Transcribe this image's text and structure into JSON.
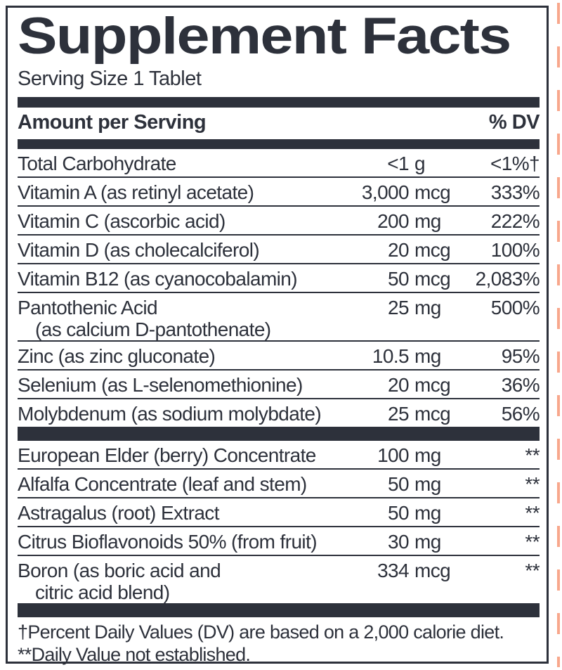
{
  "colors": {
    "ink": "#2d313b",
    "crop_mark_pink": "#f8a78c",
    "background": "#ffffff"
  },
  "label": {
    "title": "Supplement Facts",
    "serving_size": "Serving Size 1 Tablet",
    "header": {
      "amount_col": "Amount per Serving",
      "dv_col": "% DV"
    },
    "nutrients": [
      {
        "name": "Total Carbohydrate",
        "amount_num": "<1",
        "amount_unit": "g",
        "dv": "<1%†"
      },
      {
        "name": "Vitamin A (as retinyl acetate)",
        "amount_num": "3,000",
        "amount_unit": "mcg",
        "dv": "333%"
      },
      {
        "name": "Vitamin C (ascorbic acid)",
        "amount_num": "200",
        "amount_unit": "mg",
        "dv": "222%"
      },
      {
        "name": "Vitamin D (as cholecalciferol)",
        "amount_num": "20",
        "amount_unit": "mcg",
        "dv": "100%"
      },
      {
        "name": "Vitamin B12 (as cyanocobalamin)",
        "amount_num": "50",
        "amount_unit": "mcg",
        "dv": "2,083%"
      },
      {
        "name": "Pantothenic Acid",
        "sub": "(as calcium D-pantothenate)",
        "amount_num": "25",
        "amount_unit": "mg",
        "dv": "500%"
      },
      {
        "name": "Zinc (as zinc gluconate)",
        "amount_num": "10.5",
        "amount_unit": "mg",
        "dv": "95%"
      },
      {
        "name": "Selenium (as L-selenomethionine)",
        "amount_num": "20",
        "amount_unit": "mcg",
        "dv": "36%"
      },
      {
        "name": "Molybdenum (as sodium molybdate)",
        "amount_num": "25",
        "amount_unit": "mcg",
        "dv": "56%"
      }
    ],
    "botanicals": [
      {
        "name": "European Elder (berry) Concentrate",
        "amount_num": "100",
        "amount_unit": "mg",
        "dv": "**"
      },
      {
        "name": "Alfalfa Concentrate (leaf and stem)",
        "amount_num": "50",
        "amount_unit": "mg",
        "dv": "**"
      },
      {
        "name": "Astragalus (root) Extract",
        "amount_num": "50",
        "amount_unit": "mg",
        "dv": "**"
      },
      {
        "name": "Citrus Bioflavonoids 50% (from fruit)",
        "amount_num": "30",
        "amount_unit": "mg",
        "dv": "**"
      },
      {
        "name": "Boron (as boric acid and",
        "sub": "citric acid blend)",
        "amount_num": "334",
        "amount_unit": "mcg",
        "dv": "**"
      }
    ],
    "footnotes": [
      "†Percent Daily Values (DV) are based on a 2,000 calorie diet.",
      "**Daily Value not established."
    ]
  }
}
